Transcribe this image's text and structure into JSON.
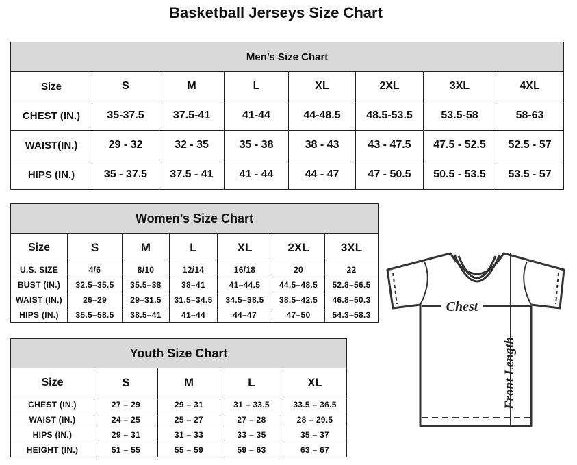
{
  "title": "Basketball Jerseys Size Chart",
  "men": {
    "heading": "Men’s Size Chart",
    "sizes": [
      "Size",
      "S",
      "M",
      "L",
      "XL",
      "2XL",
      "3XL",
      "4XL"
    ],
    "rows": [
      [
        "CHEST (IN.)",
        "35-37.5",
        "37.5-41",
        "41-44",
        "44-48.5",
        "48.5-53.5",
        "53.5-58",
        "58-63"
      ],
      [
        "WAIST(IN.)",
        "29 - 32",
        "32 - 35",
        "35 - 38",
        "38 - 43",
        "43 - 47.5",
        "47.5 - 52.5",
        "52.5 - 57"
      ],
      [
        "HIPS (IN.)",
        "35 - 37.5",
        "37.5 - 41",
        "41 - 44",
        "44 - 47",
        "47 - 50.5",
        "50.5 - 53.5",
        "53.5 - 57"
      ]
    ]
  },
  "women": {
    "heading": "Women’s Size Chart",
    "sizes": [
      "Size",
      "S",
      "M",
      "L",
      "XL",
      "2XL",
      "3XL"
    ],
    "rows": [
      [
        "U.S. SIZE",
        "4/6",
        "8/10",
        "12/14",
        "16/18",
        "20",
        "22"
      ],
      [
        "BUST (IN.)",
        "32.5–35.5",
        "35.5–38",
        "38–41",
        "41–44.5",
        "44.5–48.5",
        "52.8–56.5"
      ],
      [
        "WAIST (IN.)",
        "26–29",
        "29–31.5",
        "31.5–34.5",
        "34.5–38.5",
        "38.5–42.5",
        "46.8–50.3"
      ],
      [
        "HIPS (IN.)",
        "35.5–58.5",
        "38.5–41",
        "41–44",
        "44–47",
        "47–50",
        "54.3–58.3"
      ]
    ]
  },
  "youth": {
    "heading": "Youth Size Chart",
    "sizes": [
      "Size",
      "S",
      "M",
      "L",
      "XL"
    ],
    "rows": [
      [
        "CHEST (IN.)",
        "27 – 29",
        "29 – 31",
        "31 – 33.5",
        "33.5 – 36.5"
      ],
      [
        "WAIST (IN.)",
        "24 – 25",
        "25 – 27",
        "27 – 28",
        "28 – 29.5"
      ],
      [
        "HIPS (IN.)",
        "29 – 31",
        "31 – 33",
        "33 – 35",
        "35 – 37"
      ],
      [
        "HEIGHT (IN.)",
        "51 – 55",
        "55 – 59",
        "59 – 63",
        "63 – 67"
      ]
    ]
  },
  "diagram": {
    "chest_label": "Chest",
    "length_label": "Front Length"
  }
}
